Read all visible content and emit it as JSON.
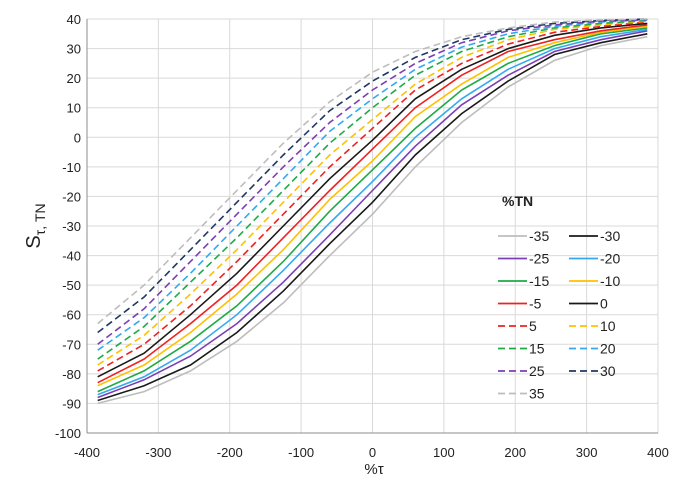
{
  "chart_data": {
    "type": "line",
    "title": "",
    "xlabel": "%τ",
    "ylabel_main": "S",
    "ylabel_sub": "τ, TN",
    "xlim": [
      -400,
      400
    ],
    "ylim": [
      -100,
      40
    ],
    "xticks": [
      -400,
      -300,
      -200,
      -100,
      0,
      100,
      200,
      300,
      400
    ],
    "yticks": [
      -100,
      -90,
      -80,
      -70,
      -60,
      -50,
      -40,
      -30,
      -20,
      -10,
      0,
      10,
      20,
      30,
      40
    ],
    "legend_title": "%TN",
    "legend_position": "right",
    "x": [
      -385,
      -320,
      -255,
      -190,
      -125,
      -60,
      0,
      60,
      125,
      190,
      255,
      320,
      385
    ],
    "series": [
      {
        "name": "-35",
        "color": "#bdbdbd",
        "dashed": false,
        "values": [
          -90,
          -86,
          -79,
          -69,
          -56,
          -40,
          -26,
          -10,
          5,
          17,
          26,
          31,
          34
        ]
      },
      {
        "name": "-30",
        "color": "#1a1a1a",
        "dashed": false,
        "values": [
          -89,
          -84,
          -77,
          -66,
          -52,
          -36,
          -22,
          -6,
          8,
          19,
          28,
          32,
          35
        ]
      },
      {
        "name": "-25",
        "color": "#7b3fb5",
        "dashed": false,
        "values": [
          -88,
          -82,
          -74,
          -63,
          -49,
          -33,
          -18,
          -3,
          11,
          21,
          29,
          33,
          36
        ]
      },
      {
        "name": "-20",
        "color": "#33aaee",
        "dashed": false,
        "values": [
          -87,
          -81,
          -72,
          -60,
          -45,
          -29,
          -15,
          0,
          13,
          23,
          30,
          34,
          36.5
        ]
      },
      {
        "name": "-15",
        "color": "#1eaa46",
        "dashed": false,
        "values": [
          -86,
          -79,
          -69,
          -57,
          -42,
          -25,
          -11,
          3,
          16,
          25,
          31,
          35,
          37
        ]
      },
      {
        "name": "-10",
        "color": "#ffc000",
        "dashed": false,
        "values": [
          -84,
          -77,
          -66,
          -53,
          -38,
          -21,
          -8,
          7,
          18,
          27,
          32,
          35.5,
          37.5
        ]
      },
      {
        "name": "-5",
        "color": "#ee2222",
        "dashed": false,
        "values": [
          -83,
          -75,
          -63,
          -50,
          -34,
          -18,
          -4,
          10,
          21,
          29,
          33,
          36,
          38
        ]
      },
      {
        "name": "0",
        "color": "#1a1a1a",
        "dashed": false,
        "values": [
          -81,
          -73,
          -60,
          -46,
          -30,
          -14,
          -1,
          13,
          23,
          30,
          34.5,
          37,
          38.5
        ]
      },
      {
        "name": "5",
        "color": "#ee2222",
        "dashed": true,
        "values": [
          -79,
          -70,
          -57,
          -42,
          -26,
          -10,
          3,
          16,
          25,
          31.5,
          35.5,
          37.5,
          39
        ]
      },
      {
        "name": "10",
        "color": "#ffc000",
        "dashed": true,
        "values": [
          -77,
          -67,
          -53,
          -38,
          -22,
          -6,
          6,
          18,
          27,
          33,
          36.5,
          38,
          39.3
        ]
      },
      {
        "name": "15",
        "color": "#1eaa46",
        "dashed": true,
        "values": [
          -75,
          -64,
          -49,
          -34,
          -18,
          -2,
          10,
          21,
          29,
          34,
          37,
          38.5,
          39.5
        ]
      },
      {
        "name": "20",
        "color": "#33aaee",
        "dashed": true,
        "values": [
          -72,
          -61,
          -46,
          -30,
          -14,
          2,
          13,
          23,
          30.5,
          35,
          37.5,
          39,
          39.7
        ]
      },
      {
        "name": "25",
        "color": "#7b3fb5",
        "dashed": true,
        "values": [
          -70,
          -58,
          -42,
          -26,
          -10,
          5,
          16,
          25,
          32,
          36,
          38,
          39.3,
          39.8
        ]
      },
      {
        "name": "30",
        "color": "#203864",
        "dashed": true,
        "values": [
          -66,
          -54,
          -38,
          -22,
          -6,
          9,
          19,
          27,
          33,
          36.5,
          38.5,
          39.5,
          40
        ]
      },
      {
        "name": "35",
        "color": "#bdbdbd",
        "dashed": true,
        "values": [
          -63,
          -50,
          -34,
          -18,
          -2,
          12,
          22,
          29,
          34,
          37,
          39,
          39.7,
          40
        ]
      }
    ]
  }
}
